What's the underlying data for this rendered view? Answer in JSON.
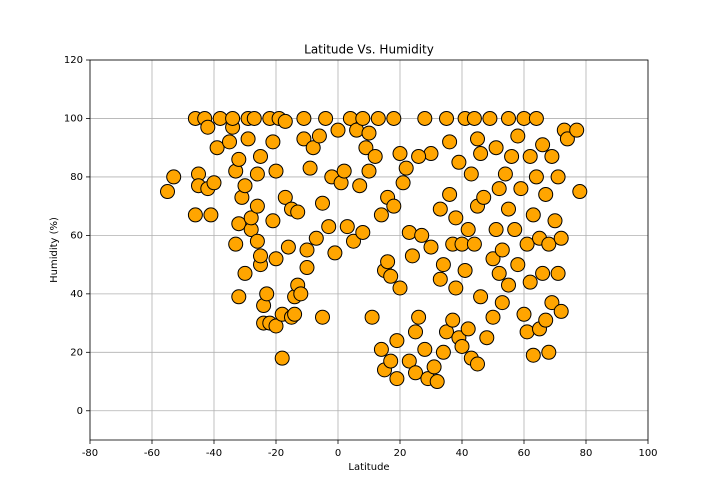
{
  "chart_data": {
    "type": "scatter",
    "title": "Latitude Vs. Humidity",
    "x_label": "Latitude",
    "y_label": "Humidity (%)",
    "color": "#ffa500",
    "edge_color": "#000000",
    "grid": true,
    "xlim": [
      -80,
      100
    ],
    "xticks": [
      -80,
      -60,
      -40,
      -20,
      0,
      20,
      40,
      60,
      80,
      100
    ],
    "ylim": [
      -10,
      120
    ],
    "yticks": [
      0,
      20,
      40,
      60,
      80,
      100,
      120
    ],
    "x": [
      -55,
      -53,
      -46,
      -46,
      -45,
      -45,
      -43,
      -42,
      -42,
      -41,
      -40,
      -39,
      -38,
      -35,
      -34,
      -34,
      -33,
      -33,
      -32,
      -32,
      -32,
      -31,
      -30,
      -30,
      -29,
      -29,
      -28,
      -28,
      -27,
      -26,
      -26,
      -26,
      -25,
      -25,
      -25,
      -24,
      -24,
      -23,
      -22,
      -22,
      -21,
      -21,
      -20,
      -20,
      -20,
      -19,
      -18,
      -18,
      -17,
      -17,
      -16,
      -15,
      -15,
      -14,
      -14,
      -13,
      -13,
      -12,
      -11,
      -11,
      -10,
      -10,
      -9,
      -8,
      -7,
      -6,
      -5,
      -5,
      -4,
      -3,
      -2,
      -1,
      0,
      1,
      2,
      3,
      4,
      5,
      6,
      7,
      8,
      9,
      10,
      11,
      12,
      13,
      14,
      14,
      15,
      15,
      16,
      16,
      17,
      17,
      18,
      18,
      19,
      19,
      20,
      20,
      21,
      22,
      23,
      23,
      24,
      25,
      25,
      26,
      27,
      28,
      28,
      29,
      30,
      30,
      31,
      32,
      33,
      33,
      34,
      34,
      35,
      35,
      36,
      37,
      37,
      38,
      38,
      39,
      39,
      40,
      40,
      41,
      41,
      42,
      42,
      43,
      43,
      44,
      44,
      45,
      45,
      46,
      46,
      47,
      48,
      49,
      50,
      50,
      51,
      51,
      52,
      52,
      53,
      53,
      54,
      55,
      55,
      56,
      57,
      58,
      58,
      59,
      60,
      60,
      61,
      61,
      62,
      62,
      63,
      63,
      64,
      64,
      65,
      65,
      66,
      66,
      67,
      67,
      68,
      68,
      69,
      69,
      70,
      71,
      71,
      72,
      72,
      73,
      74,
      77,
      78,
      8,
      10,
      26,
      36,
      55,
      45
    ],
    "y": [
      75,
      80,
      100,
      67,
      81,
      77,
      100,
      97,
      76,
      67,
      78,
      90,
      100,
      92,
      97,
      100,
      82,
      57,
      64,
      39,
      86,
      73,
      77,
      47,
      100,
      93,
      62,
      66,
      100,
      81,
      58,
      70,
      87,
      50,
      53,
      30,
      36,
      40,
      100,
      30,
      92,
      65,
      29,
      82,
      52,
      100,
      18,
      33,
      73,
      99,
      56,
      32,
      69,
      39,
      33,
      68,
      43,
      40,
      100,
      93,
      55,
      49,
      83,
      90,
      59,
      94,
      32,
      71,
      100,
      63,
      80,
      54,
      96,
      78,
      82,
      63,
      100,
      58,
      96,
      77,
      61,
      90,
      82,
      32,
      87,
      100,
      21,
      67,
      48,
      14,
      51,
      73,
      17,
      46,
      70,
      100,
      11,
      24,
      42,
      88,
      78,
      83,
      61,
      17,
      53,
      13,
      27,
      32,
      60,
      21,
      100,
      11,
      56,
      88,
      15,
      10,
      69,
      45,
      20,
      50,
      100,
      27,
      74,
      31,
      57,
      42,
      66,
      85,
      25,
      57,
      22,
      100,
      48,
      28,
      62,
      18,
      81,
      57,
      100,
      16,
      70,
      39,
      88,
      73,
      25,
      100,
      52,
      32,
      62,
      90,
      47,
      76,
      37,
      55,
      81,
      43,
      69,
      87,
      62,
      50,
      94,
      76,
      33,
      100,
      57,
      27,
      44,
      87,
      67,
      19,
      100,
      80,
      28,
      59,
      47,
      91,
      31,
      74,
      20,
      57,
      37,
      87,
      65,
      80,
      47,
      59,
      34,
      96,
      93,
      96,
      75,
      100,
      95,
      87,
      92,
      100,
      93
    ]
  }
}
